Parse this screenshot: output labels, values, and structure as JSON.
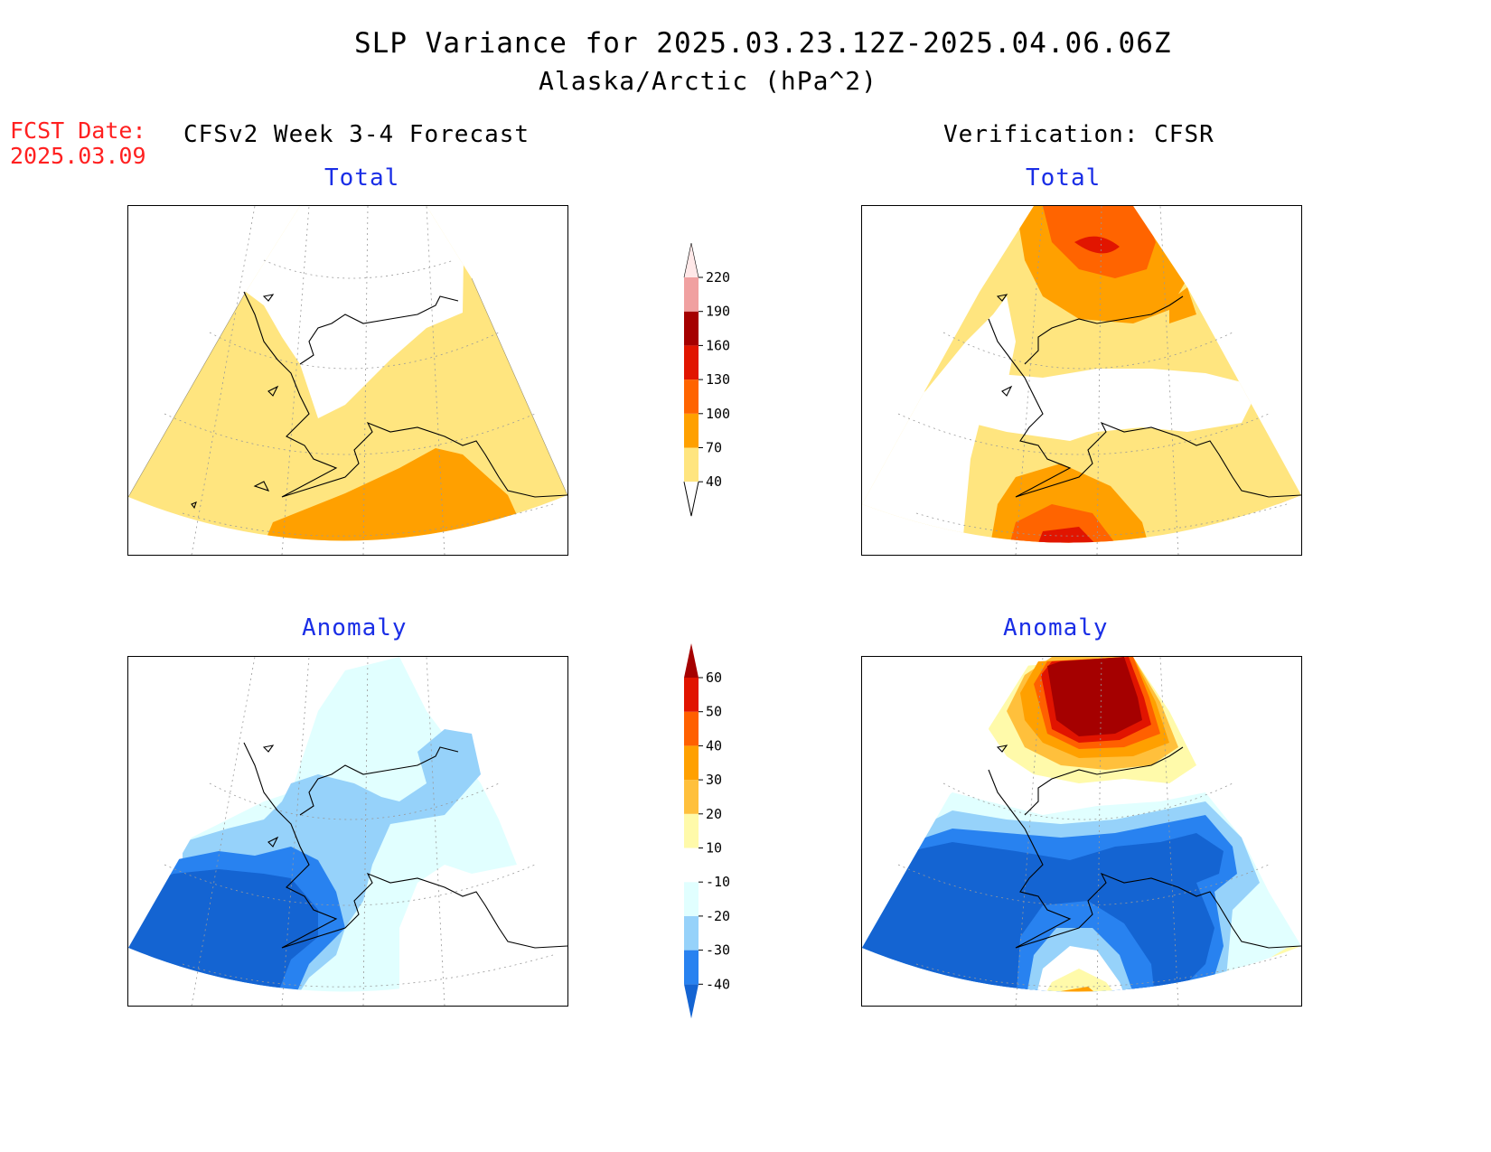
{
  "header": {
    "title": "SLP Variance for 2025.03.23.12Z-2025.04.06.06Z",
    "subtitle": "Alaska/Arctic (hPa^2)"
  },
  "fcst": {
    "label": "FCST Date:",
    "date": "2025.03.09"
  },
  "left_column": {
    "heading": "CFSv2 Week 3-4 Forecast"
  },
  "right_column": {
    "heading": "Verification: CFSR"
  },
  "panels": {
    "fcst_total": {
      "title": "Total"
    },
    "fcst_anomaly": {
      "title": "Anomaly"
    },
    "ver_total": {
      "title": "Total"
    },
    "ver_anomaly": {
      "title": "Anomaly"
    }
  },
  "colorbar_total": {
    "labels": [
      "40",
      "70",
      "100",
      "130",
      "160",
      "190",
      "220"
    ],
    "colors": [
      "#ffe57f",
      "#ffa000",
      "#ff6400",
      "#e11500",
      "#a50000",
      "#f0a0a0",
      "#ffe8e8"
    ]
  },
  "colorbar_anomaly": {
    "labels": [
      "-40",
      "-30",
      "-20",
      "-10",
      "10",
      "20",
      "30",
      "40",
      "50",
      "60"
    ],
    "colors": [
      "#1464d2",
      "#2882f0",
      "#96d2fa",
      "#e1ffff",
      "#ffffff",
      "#fffaaa",
      "#ffc03c",
      "#ffa000",
      "#ff6000",
      "#e11400",
      "#a50000"
    ]
  },
  "palette": {
    "yellow": "#ffe57f",
    "orange": "#ffa000",
    "dark_orange": "#ff6400",
    "red": "#e11500",
    "dark_red": "#a50000",
    "light_blue": "#e1ffff",
    "sky_blue": "#96d2fa",
    "medium_blue": "#2882f0",
    "dark_blue": "#1464d2",
    "pale_yellow": "#fffaaa",
    "light_orange": "#ffc03c"
  }
}
